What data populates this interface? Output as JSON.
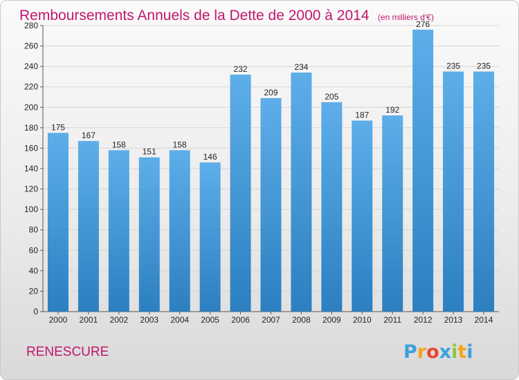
{
  "chart_data": {
    "type": "bar",
    "title": "Remboursements Annuels de la Dette de 2000 à 2014",
    "subtitle": "(en milliers d'€)",
    "categories": [
      "2000",
      "2001",
      "2002",
      "2003",
      "2004",
      "2005",
      "2006",
      "2007",
      "2008",
      "2009",
      "2010",
      "2011",
      "2012",
      "2013",
      "2014"
    ],
    "values": [
      175,
      167,
      158,
      151,
      158,
      146,
      232,
      209,
      234,
      205,
      187,
      192,
      276,
      235,
      235
    ],
    "ylim": [
      0,
      280
    ],
    "yticks": [
      0,
      20,
      40,
      60,
      80,
      100,
      120,
      140,
      160,
      180,
      200,
      220,
      240,
      260,
      280
    ],
    "grid": true,
    "bar_color_top": "#5daee9",
    "bar_color_bottom": "#2c7fc0"
  },
  "commune": "RENESCURE",
  "logo": {
    "letters": [
      "P",
      "r",
      "o",
      "x",
      "i",
      "t",
      "i"
    ],
    "colors": [
      "#3aa0dc",
      "#f2a51a",
      "#e8452e",
      "#3aa0dc",
      "#8cc63f",
      "#f2a51a",
      "#3aa0dc"
    ]
  }
}
